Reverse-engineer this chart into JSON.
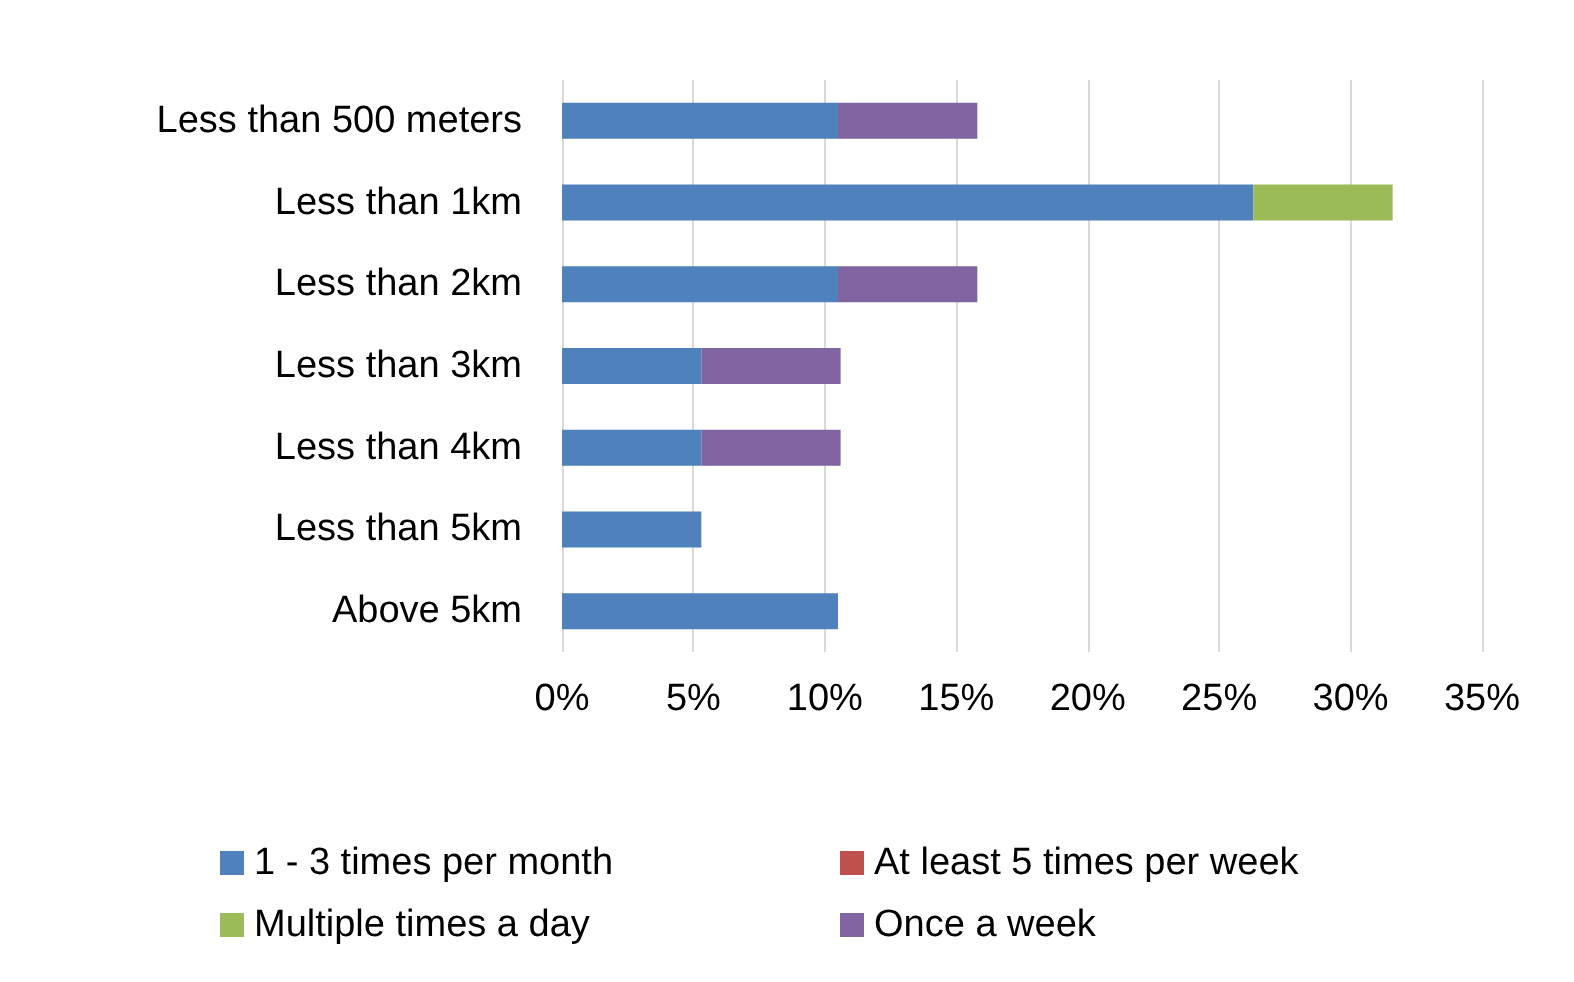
{
  "chart_data": {
    "type": "bar",
    "orientation": "horizontal",
    "stacked": true,
    "categories": [
      "Less than 500 meters",
      "Less than 1km",
      "Less than 2km",
      "Less than 3km",
      "Less than 4km",
      "Less than 5km",
      "Above 5km"
    ],
    "series": [
      {
        "name": "1 - 3 times per month",
        "color": "#4f81bd",
        "values": [
          10.5,
          26.3,
          10.5,
          5.3,
          5.3,
          5.3,
          10.5
        ]
      },
      {
        "name": "At least 5 times per week",
        "color": "#c0504d",
        "values": [
          0,
          0,
          0,
          0,
          0,
          0,
          0
        ]
      },
      {
        "name": "Multiple times a day",
        "color": "#9bbb59",
        "values": [
          0,
          5.3,
          0,
          0,
          0,
          0,
          0
        ]
      },
      {
        "name": "Once a week",
        "color": "#8064a2",
        "values": [
          5.3,
          0,
          5.3,
          5.3,
          5.3,
          0,
          0
        ]
      }
    ],
    "xlim": [
      0,
      35
    ],
    "xticks": [
      {
        "value": 0,
        "label": "0%"
      },
      {
        "value": 5,
        "label": "5%"
      },
      {
        "value": 10,
        "label": "10%"
      },
      {
        "value": 15,
        "label": "15%"
      },
      {
        "value": 20,
        "label": "20%"
      },
      {
        "value": 25,
        "label": "25%"
      },
      {
        "value": 30,
        "label": "30%"
      },
      {
        "value": 35,
        "label": "35%"
      }
    ],
    "grid": "x",
    "legend": "bottom"
  }
}
